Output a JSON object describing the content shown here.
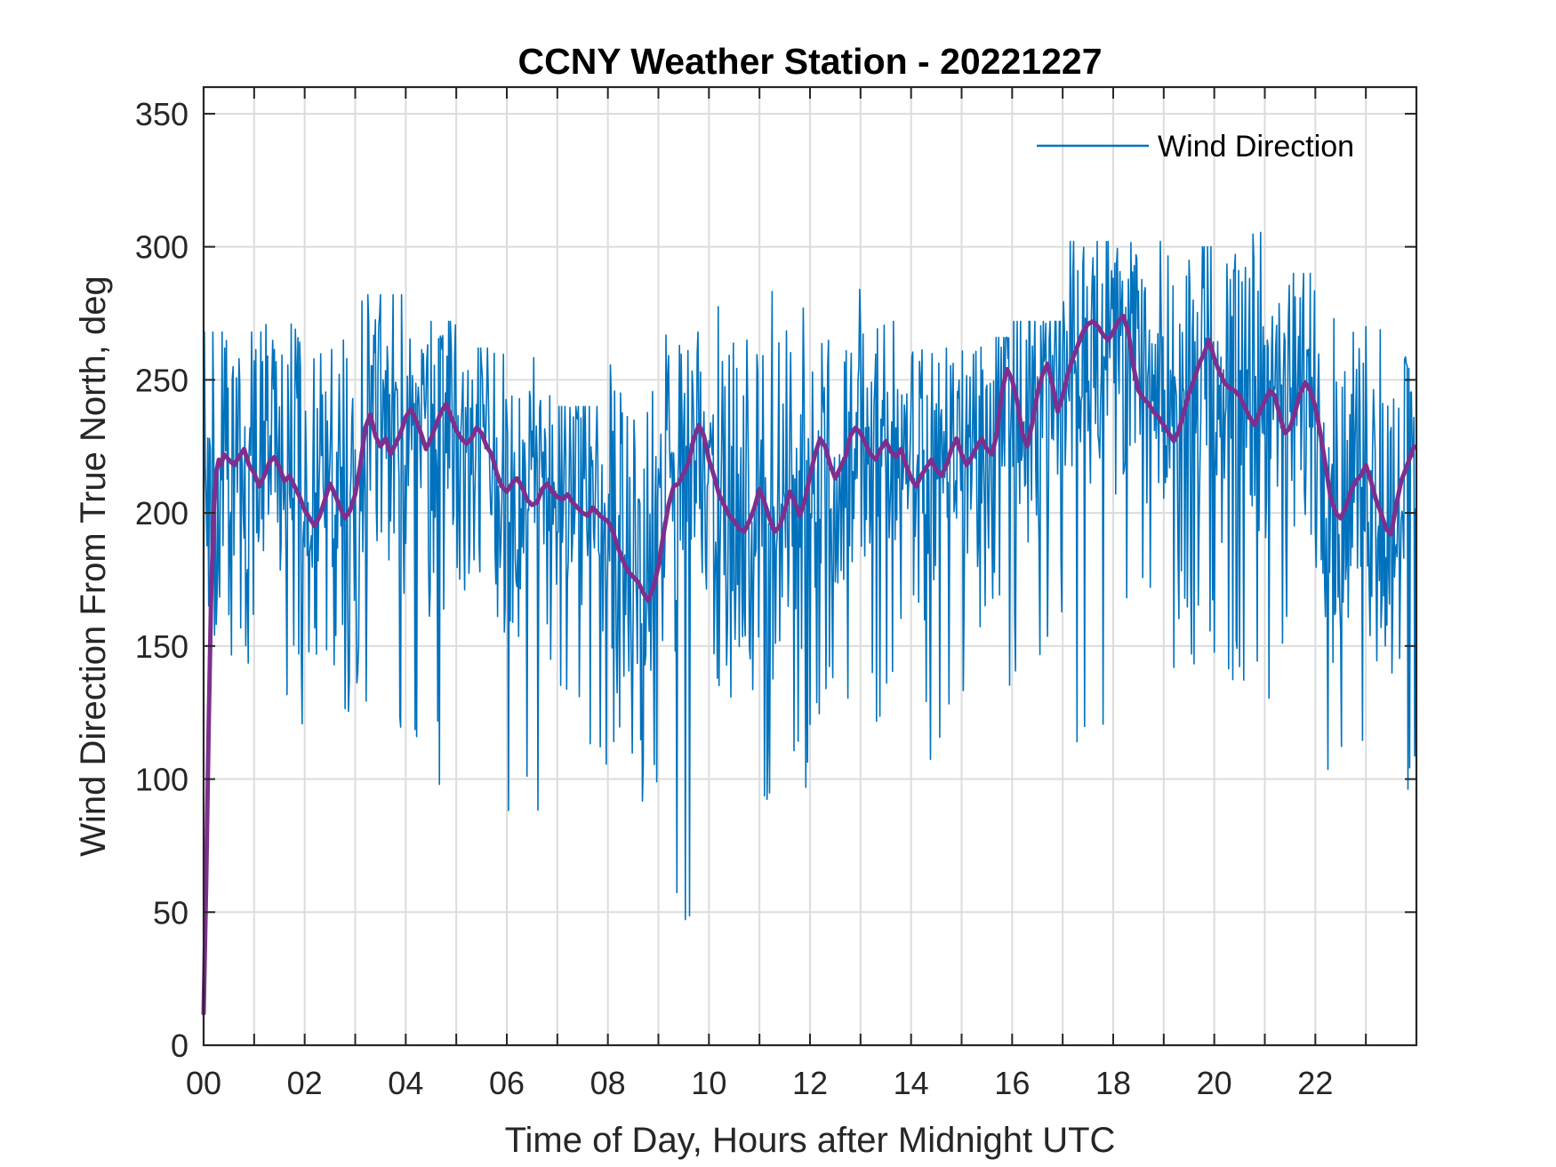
{
  "chart_data": {
    "type": "line",
    "title": "CCNY Weather Station - 20221227",
    "xlabel": "Time of Day, Hours after Midnight UTC",
    "ylabel": "Wind Direction From True North, deg",
    "xlim": [
      0,
      24
    ],
    "ylim": [
      0,
      360
    ],
    "x_tick_values": [
      0,
      2,
      4,
      6,
      8,
      10,
      12,
      14,
      16,
      18,
      20,
      22
    ],
    "x_tick_labels": [
      "00",
      "02",
      "04",
      "06",
      "08",
      "10",
      "12",
      "14",
      "16",
      "18",
      "20",
      "22"
    ],
    "y_tick_values": [
      0,
      50,
      100,
      150,
      200,
      250,
      300,
      350
    ],
    "y_tick_labels": [
      "0",
      "50",
      "100",
      "150",
      "200",
      "250",
      "300",
      "350"
    ],
    "grid": true,
    "legend": {
      "placement": "top-right",
      "entries": [
        "Wind Direction"
      ]
    },
    "series": [
      {
        "name": "Wind Direction",
        "color": "#0072BD",
        "sampling": "1-minute observations, 00:00–23:59 UTC (1440 points); envelope approximated",
        "hourly_band": {
          "hours": [
            0,
            1,
            2,
            3,
            4,
            5,
            6,
            7,
            8,
            9,
            10,
            11,
            12,
            13,
            14,
            15,
            16,
            17,
            18,
            19,
            20,
            21,
            22,
            23
          ],
          "min": [
            140,
            110,
            125,
            110,
            95,
            150,
            75,
            105,
            90,
            45,
            130,
            85,
            120,
            115,
            100,
            125,
            135,
            110,
            150,
            140,
            125,
            130,
            100,
            80
          ],
          "max": [
            268,
            273,
            265,
            282,
            272,
            262,
            265,
            240,
            258,
            268,
            280,
            285,
            290,
            272,
            262,
            266,
            272,
            302,
            302,
            300,
            308,
            290,
            275,
            270
          ]
        }
      },
      {
        "color": "#7E2F8E",
        "kind": "moving average",
        "x": [
          0.0,
          0.05,
          0.1,
          0.15,
          0.2,
          0.25,
          0.3,
          0.35,
          0.4,
          0.5,
          0.6,
          0.7,
          0.8,
          0.9,
          1.0,
          1.1,
          1.2,
          1.3,
          1.4,
          1.5,
          1.6,
          1.7,
          1.8,
          1.9,
          2.0,
          2.1,
          2.2,
          2.3,
          2.4,
          2.5,
          2.6,
          2.7,
          2.8,
          2.9,
          3.0,
          3.1,
          3.2,
          3.3,
          3.4,
          3.5,
          3.6,
          3.7,
          3.8,
          3.9,
          4.0,
          4.1,
          4.2,
          4.3,
          4.4,
          4.5,
          4.6,
          4.7,
          4.8,
          4.9,
          5.0,
          5.1,
          5.2,
          5.3,
          5.4,
          5.5,
          5.6,
          5.7,
          5.8,
          5.9,
          6.0,
          6.1,
          6.2,
          6.3,
          6.4,
          6.5,
          6.6,
          6.7,
          6.8,
          6.9,
          7.0,
          7.1,
          7.2,
          7.3,
          7.4,
          7.5,
          7.6,
          7.7,
          7.8,
          7.9,
          8.0,
          8.1,
          8.2,
          8.3,
          8.4,
          8.5,
          8.6,
          8.7,
          8.8,
          8.9,
          9.0,
          9.1,
          9.2,
          9.3,
          9.4,
          9.5,
          9.6,
          9.7,
          9.8,
          9.9,
          10.0,
          10.1,
          10.2,
          10.3,
          10.4,
          10.5,
          10.6,
          10.7,
          10.8,
          10.9,
          11.0,
          11.1,
          11.2,
          11.3,
          11.4,
          11.5,
          11.6,
          11.7,
          11.8,
          11.9,
          12.0,
          12.1,
          12.2,
          12.3,
          12.4,
          12.5,
          12.6,
          12.7,
          12.8,
          12.9,
          13.0,
          13.1,
          13.2,
          13.3,
          13.4,
          13.5,
          13.6,
          13.7,
          13.8,
          13.9,
          14.0,
          14.1,
          14.2,
          14.3,
          14.4,
          14.5,
          14.6,
          14.7,
          14.8,
          14.9,
          15.0,
          15.1,
          15.2,
          15.3,
          15.4,
          15.5,
          15.6,
          15.7,
          15.8,
          15.9,
          16.0,
          16.1,
          16.2,
          16.3,
          16.4,
          16.5,
          16.6,
          16.7,
          16.8,
          16.9,
          17.0,
          17.1,
          17.2,
          17.3,
          17.4,
          17.5,
          17.6,
          17.7,
          17.8,
          17.9,
          18.0,
          18.1,
          18.2,
          18.3,
          18.4,
          18.5,
          18.6,
          18.7,
          18.8,
          18.9,
          19.0,
          19.1,
          19.2,
          19.3,
          19.4,
          19.5,
          19.6,
          19.7,
          19.8,
          19.9,
          20.0,
          20.1,
          20.2,
          20.3,
          20.4,
          20.5,
          20.6,
          20.7,
          20.8,
          20.9,
          21.0,
          21.1,
          21.2,
          21.3,
          21.4,
          21.5,
          21.6,
          21.7,
          21.8,
          21.9,
          22.0,
          22.1,
          22.2,
          22.3,
          22.4,
          22.5,
          22.6,
          22.7,
          22.8,
          22.9,
          23.0,
          23.1,
          23.2,
          23.3,
          23.4,
          23.5,
          23.6,
          23.7,
          23.8,
          23.95
        ],
        "y": [
          12,
          60,
          120,
          170,
          200,
          215,
          220,
          218,
          222,
          220,
          218,
          221,
          224,
          218,
          215,
          210,
          214,
          219,
          221,
          217,
          212,
          214,
          210,
          206,
          201,
          198,
          195,
          199,
          205,
          211,
          207,
          202,
          198,
          201,
          207,
          218,
          232,
          237,
          229,
          225,
          228,
          222,
          226,
          230,
          236,
          239,
          235,
          230,
          224,
          228,
          233,
          238,
          241,
          236,
          231,
          228,
          226,
          228,
          232,
          230,
          225,
          222,
          215,
          210,
          208,
          211,
          213,
          210,
          205,
          203,
          204,
          209,
          211,
          208,
          206,
          205,
          207,
          204,
          202,
          200,
          199,
          202,
          200,
          198,
          197,
          193,
          187,
          182,
          178,
          176,
          174,
          170,
          167,
          172,
          180,
          192,
          203,
          210,
          211,
          215,
          219,
          228,
          233,
          229,
          220,
          214,
          207,
          203,
          199,
          197,
          194,
          193,
          197,
          202,
          209,
          204,
          198,
          193,
          195,
          201,
          208,
          204,
          199,
          205,
          214,
          222,
          228,
          225,
          218,
          213,
          217,
          221,
          229,
          232,
          230,
          226,
          222,
          220,
          224,
          227,
          223,
          221,
          224,
          218,
          213,
          210,
          214,
          217,
          220,
          216,
          214,
          218,
          224,
          228,
          222,
          218,
          221,
          225,
          228,
          224,
          222,
          230,
          246,
          254,
          250,
          242,
          230,
          225,
          234,
          245,
          252,
          256,
          248,
          238,
          244,
          252,
          258,
          263,
          268,
          271,
          272,
          270,
          267,
          265,
          268,
          272,
          274,
          268,
          255,
          246,
          243,
          241,
          238,
          236,
          233,
          230,
          227,
          231,
          238,
          245,
          250,
          256,
          260,
          265,
          258,
          253,
          249,
          247,
          246,
          244,
          240,
          236,
          233,
          238,
          242,
          246,
          244,
          236,
          230,
          232,
          238,
          245,
          249,
          246,
          240,
          230,
          218,
          206,
          200,
          198,
          202,
          208,
          212,
          214,
          218,
          212,
          205,
          200,
          194,
          192,
          203,
          212,
          217,
          225
        ]
      }
    ]
  }
}
